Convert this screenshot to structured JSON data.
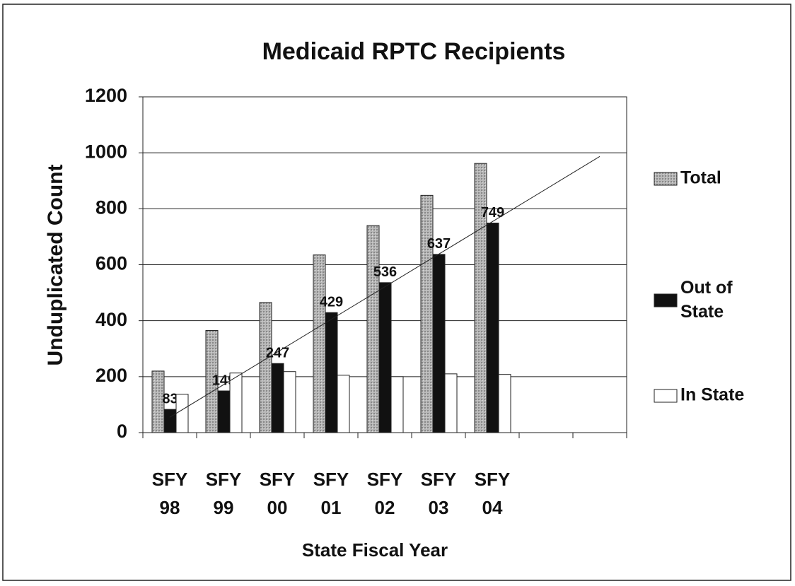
{
  "chart_data": {
    "type": "bar",
    "title": "Medicaid RPTC Recipients",
    "x_label": "State Fiscal Year",
    "y_label": "Unduplicated Count",
    "categories": [
      "SFY 98",
      "SFY 99",
      "SFY 00",
      "SFY 01",
      "SFY 02",
      "SFY 03",
      "SFY 04",
      null,
      null
    ],
    "series": [
      {
        "name": "Total",
        "color": "#a8a8a8",
        "values": [
          220,
          365,
          465,
          635,
          740,
          848,
          962,
          null,
          null
        ]
      },
      {
        "name": "Out of State",
        "color": "#111111",
        "values": [
          83,
          149,
          247,
          429,
          536,
          637,
          749,
          null,
          null
        ],
        "data_labels": true,
        "trendline": true
      },
      {
        "name": "In State",
        "color": "#ffffff",
        "values": [
          137,
          213,
          218,
          205,
          200,
          210,
          208,
          null,
          null
        ]
      }
    ],
    "ylim": [
      0,
      1200
    ],
    "yticks": [
      0,
      200,
      400,
      600,
      800,
      1000,
      1200
    ],
    "grid": true,
    "legend": "right"
  }
}
